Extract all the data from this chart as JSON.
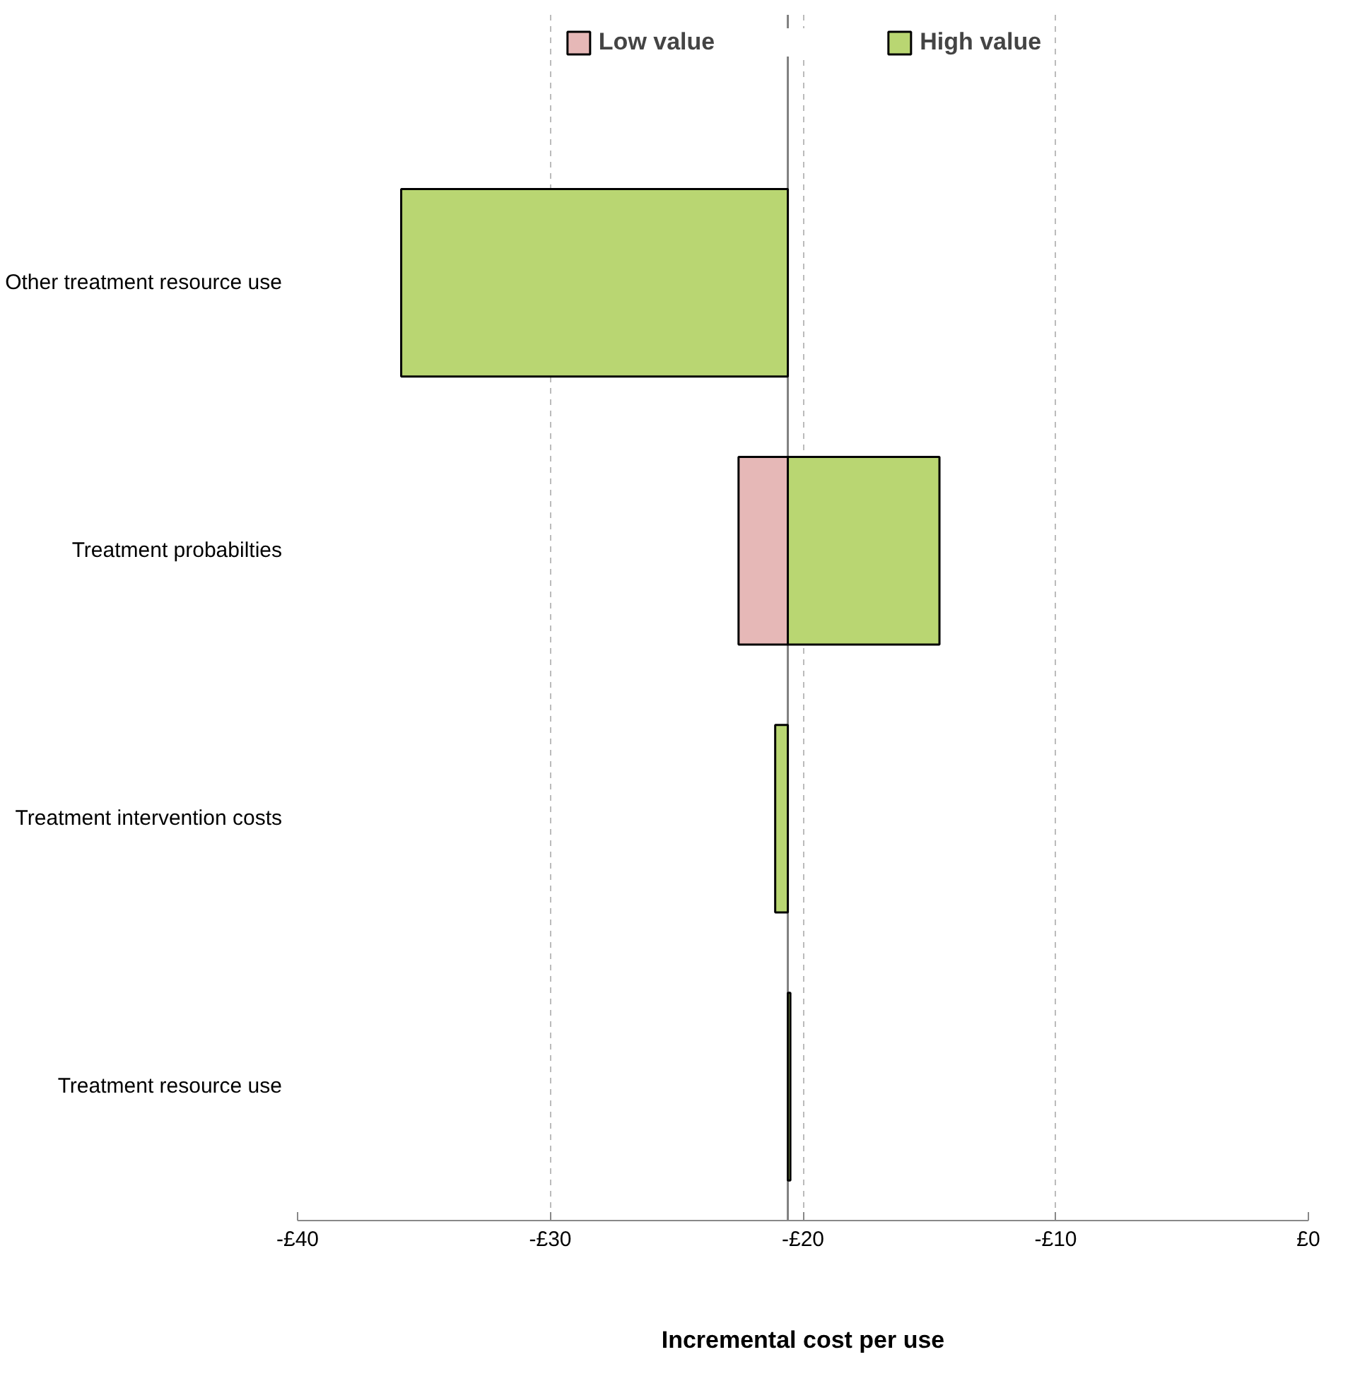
{
  "chart_data": {
    "type": "bar",
    "orientation": "horizontal",
    "xlabel": "Incremental cost per use",
    "categories": [
      "Other treatment resource use",
      "Treatment probabilties",
      "Treatment intervention costs",
      "Treatment resource use"
    ],
    "series": [
      {
        "name": "Low value",
        "color": "#e6b8b7",
        "base": [
          null,
          -20.6,
          null,
          null
        ],
        "values": [
          null,
          -1.95,
          null,
          null
        ]
      },
      {
        "name": "High value",
        "color": "#b9d672",
        "base": [
          -20.6,
          -20.6,
          -20.6,
          -20.6
        ],
        "values": [
          -15.3,
          6.0,
          -0.5,
          0.1
        ]
      }
    ],
    "xlim": [
      -40,
      0
    ],
    "xticks": [
      {
        "value": -40,
        "label": "-£40"
      },
      {
        "value": -30,
        "label": "-£30"
      },
      {
        "value": -20,
        "label": "-£20"
      },
      {
        "value": -10,
        "label": "-£10"
      },
      {
        "value": 0,
        "label": "£0"
      }
    ],
    "ref_lines": [
      {
        "axis": "x",
        "value": -20.6,
        "label": null,
        "color": "#808080"
      }
    ],
    "grid": "x",
    "legend": "top"
  }
}
